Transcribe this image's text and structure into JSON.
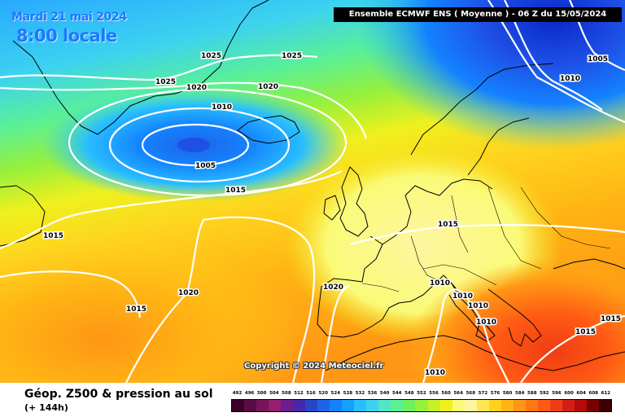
{
  "date_label": "Mardi 21 mai 2024",
  "time_label": "8:00 locale",
  "header": "Ensemble ECMWF ENS  ( Moyenne )  -  06 Z du 15/05/2024",
  "copyright": "Copyright © 2024 Meteociel.fr",
  "legend": {
    "title": "Géop. Z500 & pression au sol",
    "subtitle": "(+ 144h)",
    "values": [
      "492",
      "496",
      "500",
      "504",
      "508",
      "512",
      "516",
      "520",
      "524",
      "528",
      "532",
      "536",
      "540",
      "544",
      "548",
      "552",
      "556",
      "560",
      "564",
      "568",
      "572",
      "576",
      "580",
      "584",
      "588",
      "592",
      "596",
      "600",
      "604",
      "608",
      "612"
    ],
    "colors": [
      "#3c0028",
      "#5a0a46",
      "#78145a",
      "#961e6e",
      "#6e1e8c",
      "#4628aa",
      "#2846c8",
      "#1e64e6",
      "#1482ff",
      "#14a0ff",
      "#28beff",
      "#3cd2f0",
      "#50e6c8",
      "#5af096",
      "#6ef05a",
      "#96f03c",
      "#c8f028",
      "#f0f01e",
      "#fafa78",
      "#fff5a0",
      "#ffe650",
      "#ffd21e",
      "#ffb414",
      "#ff9614",
      "#ff7814",
      "#ff5a14",
      "#f03c14",
      "#d21e14",
      "#b40a0a",
      "#780000",
      "#3c0000"
    ]
  },
  "isobars": [
    {
      "label": "1025",
      "text_color": "#000000"
    },
    {
      "label": "1025",
      "text_color": "#000000"
    },
    {
      "label": "1025",
      "text_color": "#000000"
    },
    {
      "label": "1020",
      "text_color": "#000000"
    },
    {
      "label": "1020",
      "text_color": "#000000"
    },
    {
      "label": "1010",
      "text_color": "#000000"
    },
    {
      "label": "1005",
      "text_color": "#000000"
    },
    {
      "label": "1015",
      "text_color": "#000000"
    },
    {
      "label": "1005",
      "text_color": "#000000"
    },
    {
      "label": "1010",
      "text_color": "#000000"
    },
    {
      "label": "1015",
      "text_color": "#000000"
    },
    {
      "label": "1015",
      "text_color": "#000000"
    },
    {
      "label": "1015",
      "text_color": "#000000"
    },
    {
      "label": "1020",
      "text_color": "#000000"
    },
    {
      "label": "1020",
      "text_color": "#000000"
    },
    {
      "label": "1010",
      "text_color": "#000000"
    },
    {
      "label": "1010",
      "text_color": "#000000"
    },
    {
      "label": "1010",
      "text_color": "#000000"
    },
    {
      "label": "1010",
      "text_color": "#000000"
    },
    {
      "label": "1010",
      "text_color": "#000000"
    },
    {
      "label": "1015",
      "text_color": "#000000"
    },
    {
      "label": "1015",
      "text_color": "#000000"
    }
  ]
}
